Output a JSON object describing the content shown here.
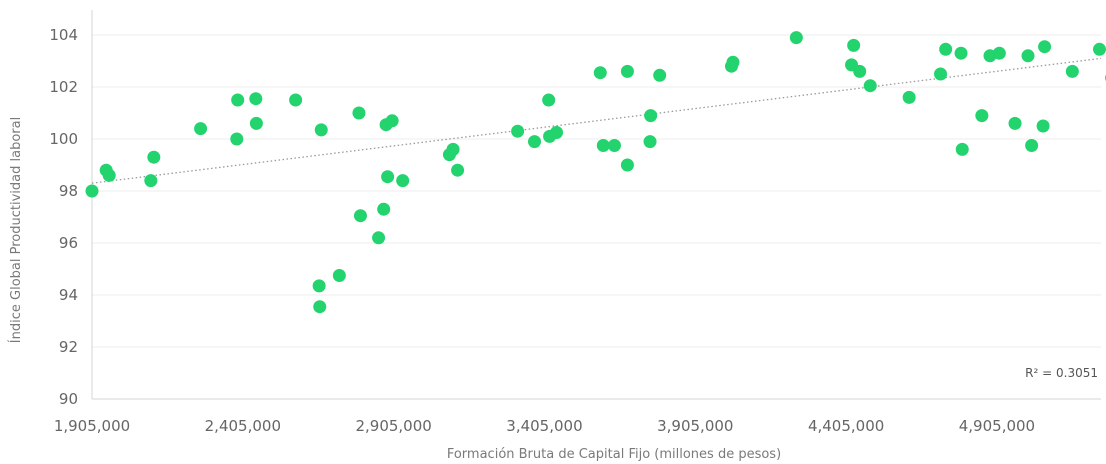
{
  "chart_data": {
    "type": "scatter",
    "xlabel": "Formación Bruta de Capital Fijo (millones de pesos)",
    "ylabel": "Índice Global Productividad laboral",
    "xlim": [
      1905000,
      5250000
    ],
    "ylim": [
      90,
      104
    ],
    "xticks": [
      1905000,
      2405000,
      2905000,
      3405000,
      3905000,
      4405000,
      4905000
    ],
    "xtick_labels": [
      "1,905,000",
      "2,405,000",
      "2,905,000",
      "3,405,000",
      "3,905,000",
      "4,405,000",
      "4,905,000"
    ],
    "yticks": [
      90,
      92,
      94,
      96,
      98,
      100,
      102,
      104
    ],
    "ytick_labels": [
      "90",
      "92",
      "94",
      "96",
      "98",
      "100",
      "102",
      "104"
    ],
    "grid": "horizontal",
    "annotation": "R² = 0.3051",
    "trendline": {
      "type": "linear",
      "x": [
        1905000,
        5250000
      ],
      "y": [
        98.3,
        103.1
      ]
    },
    "point_color": "#22d36e",
    "points": [
      [
        1905000,
        98.0
      ],
      [
        1952000,
        98.8
      ],
      [
        1962000,
        98.6
      ],
      [
        2100000,
        98.4
      ],
      [
        2110000,
        99.3
      ],
      [
        2265000,
        100.4
      ],
      [
        2385000,
        100.0
      ],
      [
        2388000,
        101.5
      ],
      [
        2448000,
        101.55
      ],
      [
        2450000,
        100.6
      ],
      [
        2580000,
        101.5
      ],
      [
        2658000,
        94.35
      ],
      [
        2660000,
        93.55
      ],
      [
        2665000,
        100.35
      ],
      [
        2725000,
        94.75
      ],
      [
        2790000,
        101.0
      ],
      [
        2795000,
        97.05
      ],
      [
        2855000,
        96.2
      ],
      [
        2872000,
        97.3
      ],
      [
        2880000,
        100.55
      ],
      [
        2885000,
        98.55
      ],
      [
        2900000,
        100.7
      ],
      [
        2935000,
        98.4
      ],
      [
        3090000,
        99.4
      ],
      [
        3102000,
        99.6
      ],
      [
        3117000,
        98.8
      ],
      [
        3316000,
        100.3
      ],
      [
        3372000,
        99.9
      ],
      [
        3419000,
        101.5
      ],
      [
        3422000,
        100.1
      ],
      [
        3445000,
        100.25
      ],
      [
        3590000,
        102.55
      ],
      [
        3600000,
        99.75
      ],
      [
        3637000,
        99.75
      ],
      [
        3680000,
        102.6
      ],
      [
        3680000,
        99.0
      ],
      [
        3755000,
        99.9
      ],
      [
        3757000,
        100.9
      ],
      [
        3787000,
        102.45
      ],
      [
        4025000,
        102.8
      ],
      [
        4030000,
        102.95
      ],
      [
        4240000,
        103.9
      ],
      [
        4423000,
        102.85
      ],
      [
        4430000,
        103.6
      ],
      [
        4450000,
        102.6
      ],
      [
        4485000,
        102.05
      ],
      [
        4614000,
        101.6
      ],
      [
        4718000,
        102.5
      ],
      [
        4735000,
        103.45
      ],
      [
        4786000,
        103.3
      ],
      [
        4790000,
        99.6
      ],
      [
        4855000,
        100.9
      ],
      [
        4882000,
        103.2
      ],
      [
        4913000,
        103.3
      ],
      [
        4965000,
        100.6
      ],
      [
        5008000,
        103.2
      ],
      [
        5020000,
        99.75
      ],
      [
        5058000,
        100.5
      ],
      [
        5063000,
        103.55
      ],
      [
        5155000,
        102.6
      ],
      [
        5245000,
        103.45
      ],
      [
        5285000,
        102.35
      ],
      [
        5295000,
        102.5
      ]
    ]
  }
}
